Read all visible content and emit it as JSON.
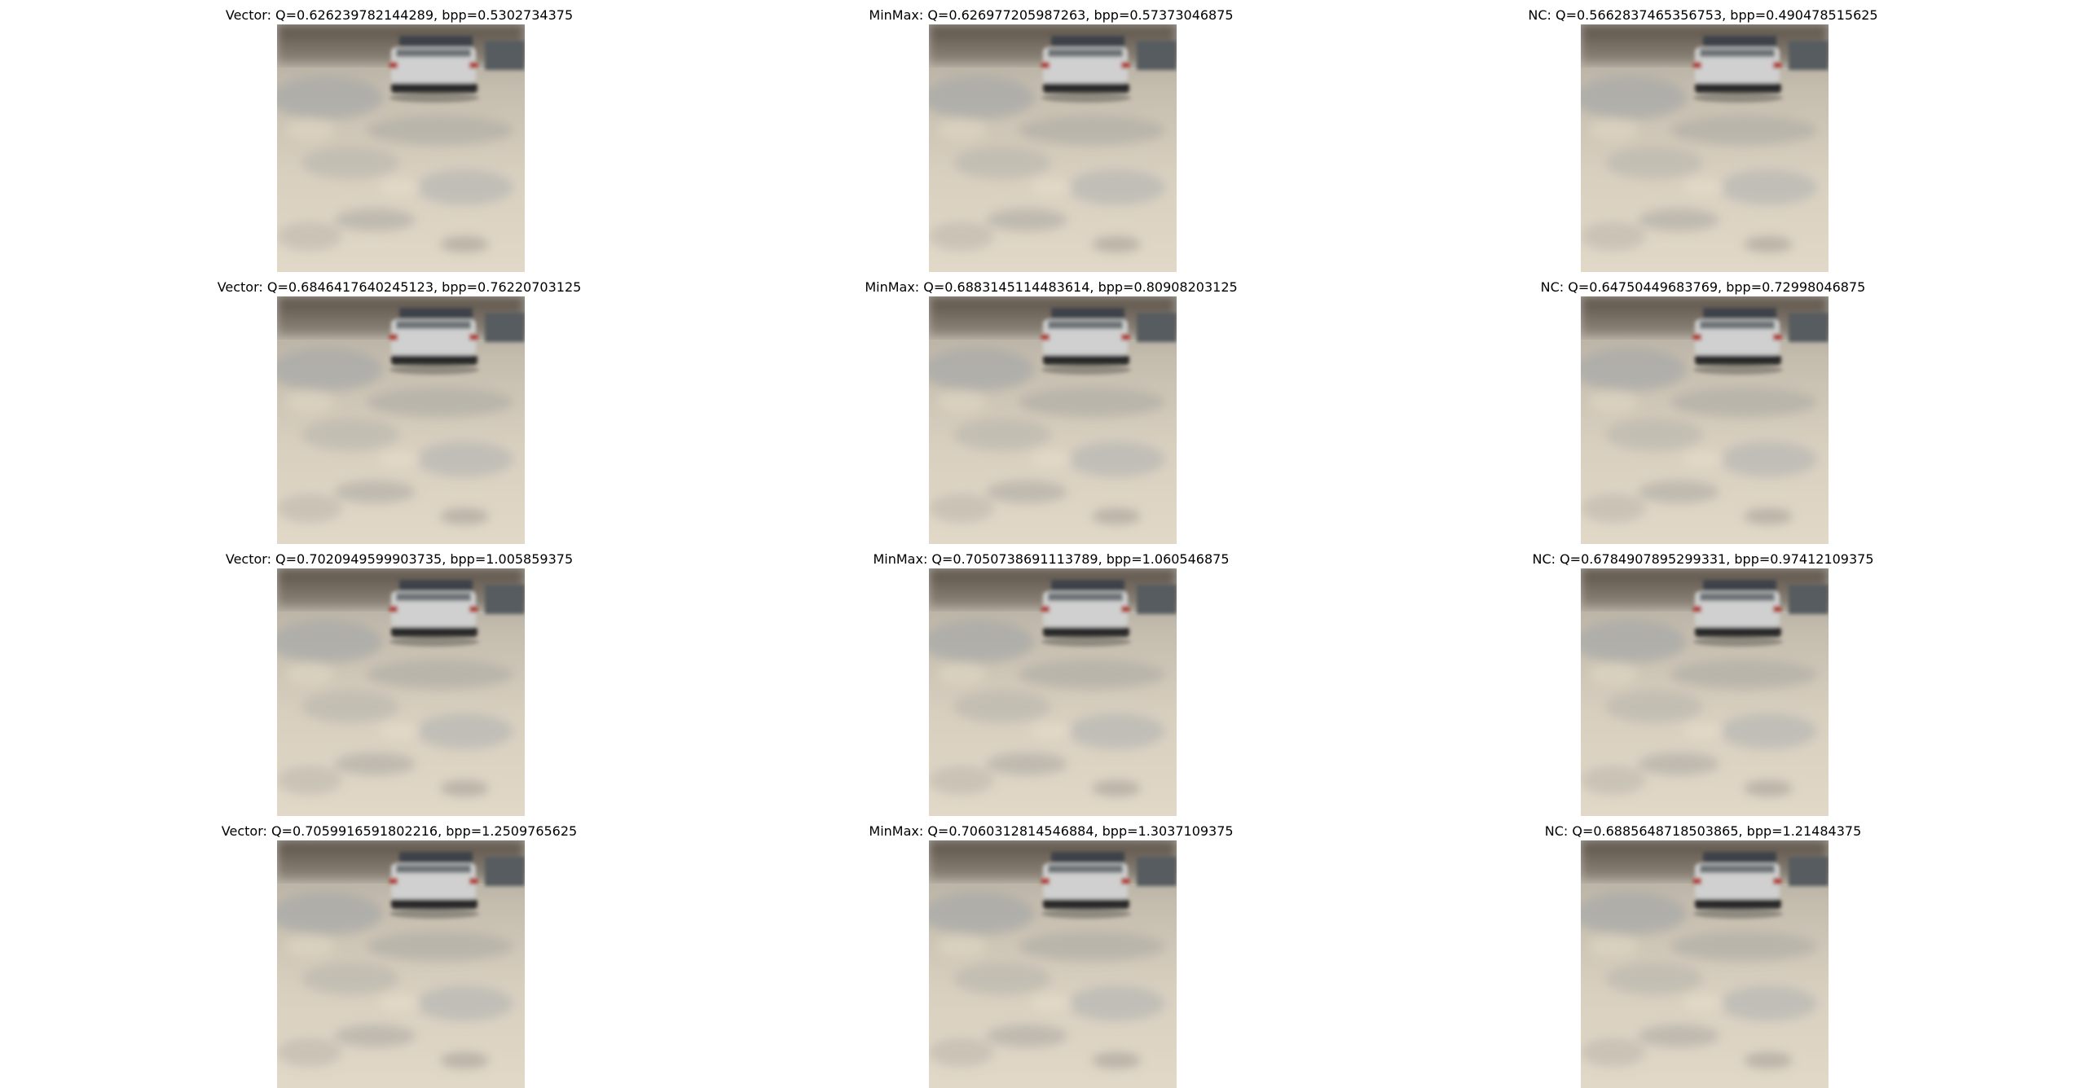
{
  "panels": [
    {
      "row": 0,
      "col": 0,
      "title": "Vector: Q=0.626239782144289, bpp=0.5302734375"
    },
    {
      "row": 0,
      "col": 1,
      "title": "MinMax: Q=0.626977205987263, bpp=0.57373046875"
    },
    {
      "row": 0,
      "col": 2,
      "title": "NC: Q=0.5662837465356753, bpp=0.490478515625"
    },
    {
      "row": 1,
      "col": 0,
      "title": "Vector: Q=0.6846417640245123, bpp=0.76220703125"
    },
    {
      "row": 1,
      "col": 1,
      "title": "MinMax: Q=0.6883145114483614, bpp=0.80908203125"
    },
    {
      "row": 1,
      "col": 2,
      "title": "NC: Q=0.64750449683769, bpp=0.72998046875"
    },
    {
      "row": 2,
      "col": 0,
      "title": "Vector: Q=0.7020949599903735, bpp=1.005859375"
    },
    {
      "row": 2,
      "col": 1,
      "title": "MinMax: Q=0.7050738691113789, bpp=1.060546875"
    },
    {
      "row": 2,
      "col": 2,
      "title": "NC: Q=0.6784907895299331, bpp=0.97412109375"
    },
    {
      "row": 3,
      "col": 0,
      "title": "Vector: Q=0.7059916591802216, bpp=1.2509765625"
    },
    {
      "row": 3,
      "col": 1,
      "title": "MinMax: Q=0.7060312814546884, bpp=1.3037109375"
    },
    {
      "row": 3,
      "col": 2,
      "title": "NC: Q=0.6885648718503865, bpp=1.21484375"
    }
  ]
}
